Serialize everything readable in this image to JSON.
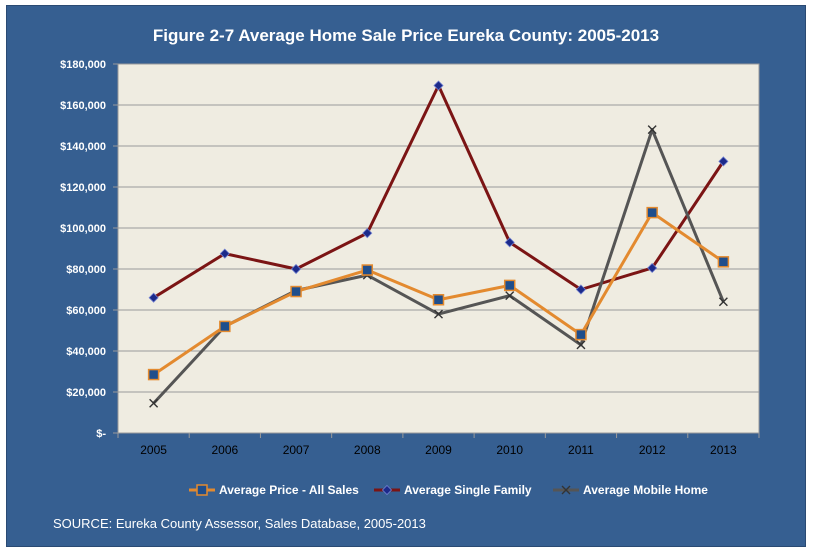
{
  "chart_data": {
    "type": "line",
    "title": "Figure 2-7 Average Home Sale Price Eureka County: 2005-2013",
    "source": "SOURCE:  Eureka County Assessor, Sales Database, 2005-2013",
    "categories": [
      "2005",
      "2006",
      "2007",
      "2008",
      "2009",
      "2010",
      "2011",
      "2012",
      "2013"
    ],
    "ylim": [
      0,
      180000
    ],
    "y_ticks": [
      0,
      20000,
      40000,
      60000,
      80000,
      100000,
      120000,
      140000,
      160000,
      180000
    ],
    "y_tick_labels": [
      "$-",
      "$20,000",
      "$40,000",
      "$60,000",
      "$80,000",
      "$100,000",
      "$120,000",
      "$140,000",
      "$160,000",
      "$180,000"
    ],
    "grid": true,
    "legend_position": "bottom",
    "series": [
      {
        "name": "Average Price - All Sales",
        "values": [
          28500,
          52000,
          69000,
          79500,
          65000,
          72000,
          48000,
          107500,
          83500
        ],
        "color": "#e38a2f",
        "marker": "square",
        "marker_color": "#1f4e8c"
      },
      {
        "name": "Average Single Family",
        "values": [
          66000,
          87500,
          80000,
          97500,
          169500,
          93000,
          70000,
          80500,
          132500
        ],
        "color": "#7b1414",
        "marker": "diamond",
        "marker_color": "#1c2a8a"
      },
      {
        "name": "Average Mobile Home",
        "values": [
          14500,
          52000,
          69500,
          77000,
          58000,
          67000,
          43000,
          148000,
          64000
        ],
        "color": "#555555",
        "marker": "x",
        "marker_color": "#333333"
      }
    ]
  }
}
